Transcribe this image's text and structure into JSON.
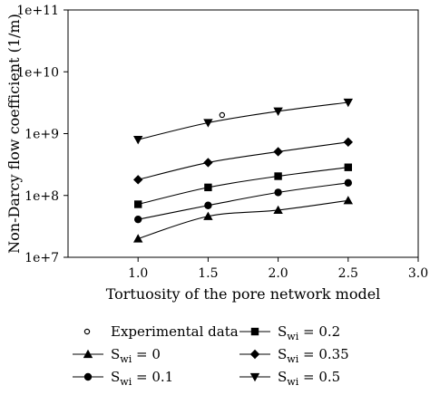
{
  "chart_data": {
    "type": "line",
    "xlabel": "Tortuosity of the pore network model",
    "ylabel": "Non-Darcy flow coefficient (1/m)",
    "xlim": [
      0.5,
      3.0
    ],
    "ylim": [
      10000000.0,
      100000000000.0
    ],
    "yscale": "log",
    "grid": false,
    "legend_position": "below",
    "x_ticks": [
      1.0,
      1.5,
      2.0,
      2.5,
      3.0
    ],
    "x_tick_labels": [
      "1.0",
      "1.5",
      "2.0",
      "2.5",
      "3.0"
    ],
    "y_ticks": [
      10000000.0,
      100000000.0,
      1000000000.0,
      10000000000.0,
      100000000000.0
    ],
    "y_tick_labels": [
      "1e+7",
      "1e+8",
      "1e+9",
      "1e+10",
      "1e+11"
    ],
    "series": [
      {
        "name_main": "S",
        "name_sub": "wi",
        "name_rest": " = 0",
        "marker": "triangle-up",
        "x": [
          1.0,
          1.5,
          2.0,
          2.5
        ],
        "y": [
          20000000.0,
          46000000.0,
          58000000.0,
          83000000.0
        ]
      },
      {
        "name_main": "S",
        "name_sub": "wi",
        "name_rest": " = 0.1",
        "marker": "circle",
        "x": [
          1.0,
          1.5,
          2.0,
          2.5
        ],
        "y": [
          41000000.0,
          69000000.0,
          112000000.0,
          160000000.0
        ]
      },
      {
        "name_main": "S",
        "name_sub": "wi",
        "name_rest": " = 0.2",
        "marker": "square",
        "x": [
          1.0,
          1.5,
          2.0,
          2.5
        ],
        "y": [
          72000000.0,
          135000000.0,
          205000000.0,
          285000000.0
        ]
      },
      {
        "name_main": "S",
        "name_sub": "wi",
        "name_rest": " = 0.35",
        "marker": "diamond",
        "x": [
          1.0,
          1.5,
          2.0,
          2.5
        ],
        "y": [
          180000000.0,
          340000000.0,
          510000000.0,
          730000000.0
        ]
      },
      {
        "name_main": "S",
        "name_sub": "wi",
        "name_rest": " = 0.5",
        "marker": "triangle-down",
        "x": [
          1.0,
          1.5,
          2.0,
          2.5
        ],
        "y": [
          800000000.0,
          1500000000.0,
          2300000000.0,
          3200000000.0
        ]
      }
    ],
    "experimental": {
      "name": "Experimental data",
      "marker": "open-circle",
      "x": [
        1.6
      ],
      "y": [
        2000000000.0
      ]
    },
    "legend": [
      {
        "entry": "experimental"
      },
      {
        "entry": "series",
        "index": 2
      },
      {
        "entry": "series",
        "index": 0
      },
      {
        "entry": "series",
        "index": 3
      },
      {
        "entry": "series",
        "index": 1
      },
      {
        "entry": "series",
        "index": 4
      }
    ]
  }
}
